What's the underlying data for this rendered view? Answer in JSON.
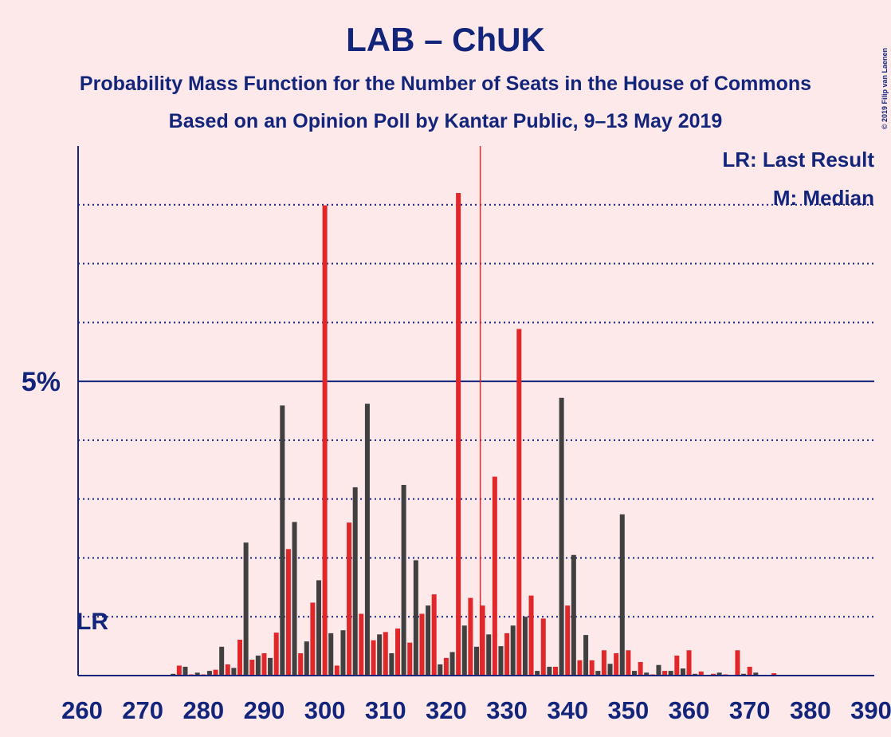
{
  "chart_data": {
    "type": "bar",
    "title": "LAB – ChUK",
    "subtitle": "Probability Mass Function for the Number of Seats in the House of Commons",
    "subtitle2": "Based on an Opinion Poll by Kantar Public, 9–13 May 2019",
    "copyright": "© 2019 Filip van Laenen",
    "legend": [
      "LR: Last Result",
      "M: Median"
    ],
    "last_result": 262,
    "last_result_label": "LR",
    "median": 326,
    "median_color": "#e0282b",
    "colors": [
      "#e0282b",
      "#404040"
    ],
    "x": [
      260,
      261,
      262,
      263,
      264,
      265,
      266,
      267,
      268,
      269,
      270,
      271,
      272,
      273,
      274,
      275,
      276,
      277,
      278,
      279,
      280,
      281,
      282,
      283,
      284,
      285,
      286,
      287,
      288,
      289,
      290,
      291,
      292,
      293,
      294,
      295,
      296,
      297,
      298,
      299,
      300,
      301,
      302,
      303,
      304,
      305,
      306,
      307,
      308,
      309,
      310,
      311,
      312,
      313,
      314,
      315,
      316,
      317,
      318,
      319,
      320,
      321,
      322,
      323,
      324,
      325,
      326,
      327,
      328,
      329,
      330,
      331,
      332,
      333,
      334,
      335,
      336,
      337,
      338,
      339,
      340,
      341,
      342,
      343,
      344,
      345,
      346,
      347,
      348,
      349,
      350,
      351,
      352,
      353,
      354,
      355,
      356,
      357,
      358,
      359,
      360,
      361,
      362,
      363,
      364,
      365,
      366,
      367,
      368,
      369,
      370,
      371,
      372,
      373,
      374,
      375,
      376,
      377,
      378,
      379,
      380,
      381,
      382,
      383,
      384,
      385,
      386,
      387,
      388,
      389,
      390
    ],
    "values": [
      0,
      0,
      0,
      0,
      0,
      0,
      0,
      0,
      0,
      0,
      0,
      0,
      0,
      0,
      0,
      0.03,
      0.17,
      0.15,
      0.02,
      0.05,
      0.02,
      0.08,
      0.1,
      0.49,
      0.19,
      0.13,
      0.61,
      2.26,
      0.27,
      0.34,
      0.38,
      0.3,
      0.73,
      4.59,
      2.15,
      2.61,
      0.38,
      0.58,
      1.24,
      1.62,
      7.99,
      0.72,
      0.17,
      0.77,
      2.6,
      3.2,
      1.05,
      4.62,
      0.6,
      0.7,
      0.74,
      0.38,
      0.8,
      3.24,
      0.56,
      1.96,
      1.05,
      1.19,
      1.38,
      0.19,
      0.3,
      0.4,
      8.2,
      0.85,
      1.32,
      0.49,
      1.19,
      0.7,
      3.38,
      0.5,
      0.72,
      0.85,
      5.89,
      1.0,
      1.36,
      0.08,
      0.97,
      0.15,
      0.15,
      4.72,
      1.19,
      2.05,
      0.26,
      0.69,
      0.26,
      0.08,
      0.43,
      0.2,
      0.38,
      2.74,
      0.43,
      0.08,
      0.23,
      0.05,
      0.02,
      0.18,
      0.08,
      0.08,
      0.34,
      0.12,
      0.43,
      0.03,
      0.07,
      0.01,
      0.03,
      0.05,
      0.02,
      0.01,
      0.43,
      0.03,
      0.15,
      0.05,
      0.01,
      0.01,
      0.04,
      0.01,
      0.01,
      0.01,
      0.01,
      0.01,
      0.01,
      0.01,
      0.01,
      0.01,
      0.01,
      0.01,
      0,
      0,
      0,
      0,
      0
    ],
    "xlim": [
      260,
      390
    ],
    "xticks": [
      260,
      270,
      280,
      290,
      300,
      310,
      320,
      330,
      340,
      350,
      360,
      370,
      380,
      390
    ],
    "ylim": [
      0,
      9
    ],
    "yticks": [
      {
        "value": 5,
        "label": "5%"
      }
    ],
    "minor_yticks": [
      1,
      2,
      3,
      4,
      6,
      7,
      8
    ]
  }
}
